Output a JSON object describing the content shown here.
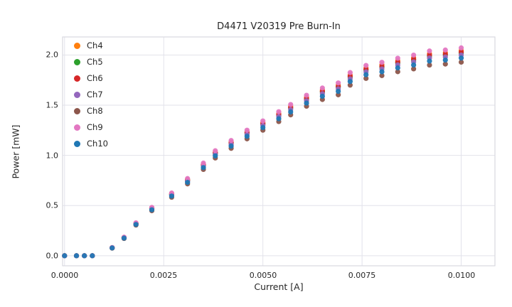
{
  "chart_data": {
    "type": "scatter",
    "title": "D4471 V20319 Pre Burn-In",
    "xlabel": "Current [A]",
    "ylabel": "Power [mW]",
    "xlim": [
      -5e-05,
      0.01085
    ],
    "ylim": [
      -0.1,
      2.18
    ],
    "grid": true,
    "legend_position": "upper left",
    "marker": "circle",
    "grid_color": "#e2e2ea",
    "spine_color": "#d9d9e0",
    "xticks": [
      0.0,
      0.0025,
      0.005,
      0.0075,
      0.01
    ],
    "xtick_labels": [
      "0.0000",
      "0.0025",
      "0.0050",
      "0.0075",
      "0.0100"
    ],
    "yticks": [
      0.0,
      0.5,
      1.0,
      1.5,
      2.0
    ],
    "ytick_labels": [
      "0.0",
      "0.5",
      "1.0",
      "1.5",
      "2.0"
    ],
    "x": [
      0.0,
      0.0003,
      0.0005,
      0.0007,
      0.0012,
      0.0015,
      0.0018,
      0.0022,
      0.0027,
      0.0031,
      0.0035,
      0.0038,
      0.0042,
      0.0046,
      0.005,
      0.0054,
      0.0057,
      0.0061,
      0.0065,
      0.0069,
      0.0072,
      0.0076,
      0.008,
      0.0084,
      0.0088,
      0.0092,
      0.0096,
      0.01
    ],
    "series": [
      {
        "name": "Ch4",
        "color": "#ff7f0e",
        "values": [
          0,
          0,
          0,
          0,
          0.081,
          0.182,
          0.324,
          0.476,
          0.617,
          0.759,
          0.911,
          1.032,
          1.133,
          1.235,
          1.326,
          1.417,
          1.488,
          1.579,
          1.65,
          1.7,
          1.801,
          1.872,
          1.903,
          1.943,
          1.974,
          2.014,
          2.024,
          2.044
        ]
      },
      {
        "name": "Ch5",
        "color": "#2ca02c",
        "values": [
          0,
          0,
          0,
          0,
          0.08,
          0.18,
          0.32,
          0.47,
          0.61,
          0.75,
          0.9,
          1.02,
          1.12,
          1.22,
          1.31,
          1.4,
          1.47,
          1.56,
          1.63,
          1.68,
          1.78,
          1.85,
          1.88,
          1.92,
          1.95,
          1.99,
          2.0,
          2.02
        ]
      },
      {
        "name": "Ch6",
        "color": "#d62728",
        "values": [
          0,
          0,
          0,
          0,
          0.08,
          0.181,
          0.322,
          0.472,
          0.613,
          0.754,
          0.905,
          1.025,
          1.126,
          1.226,
          1.317,
          1.407,
          1.477,
          1.568,
          1.638,
          1.688,
          1.789,
          1.859,
          1.889,
          1.93,
          1.96,
          2.0,
          2.01,
          2.03
        ]
      },
      {
        "name": "Ch7",
        "color": "#9467bd",
        "values": [
          0,
          0,
          0,
          0,
          0.079,
          0.178,
          0.317,
          0.465,
          0.604,
          0.743,
          0.891,
          1.01,
          1.109,
          1.208,
          1.297,
          1.386,
          1.455,
          1.544,
          1.614,
          1.663,
          1.762,
          1.832,
          1.861,
          1.901,
          1.931,
          1.97,
          1.98,
          2.0
        ]
      },
      {
        "name": "Ch8",
        "color": "#8c564b",
        "values": [
          0,
          0,
          0,
          0,
          0.076,
          0.172,
          0.306,
          0.449,
          0.583,
          0.716,
          0.86,
          0.974,
          1.07,
          1.165,
          1.251,
          1.337,
          1.404,
          1.49,
          1.557,
          1.604,
          1.7,
          1.767,
          1.795,
          1.834,
          1.862,
          1.9,
          1.91,
          1.929
        ]
      },
      {
        "name": "Ch9",
        "color": "#e377c2",
        "values": [
          0,
          0,
          0,
          0,
          0.082,
          0.185,
          0.328,
          0.482,
          0.625,
          0.769,
          0.923,
          1.046,
          1.148,
          1.251,
          1.343,
          1.435,
          1.507,
          1.599,
          1.671,
          1.722,
          1.825,
          1.896,
          1.927,
          1.968,
          1.999,
          2.04,
          2.05,
          2.071
        ]
      },
      {
        "name": "Ch10",
        "color": "#1f77b4",
        "values": [
          0,
          0,
          0,
          0,
          0.078,
          0.176,
          0.312,
          0.458,
          0.595,
          0.731,
          0.878,
          0.995,
          1.092,
          1.19,
          1.277,
          1.365,
          1.433,
          1.521,
          1.589,
          1.638,
          1.736,
          1.804,
          1.833,
          1.872,
          1.901,
          1.94,
          1.95,
          1.97
        ]
      }
    ]
  }
}
